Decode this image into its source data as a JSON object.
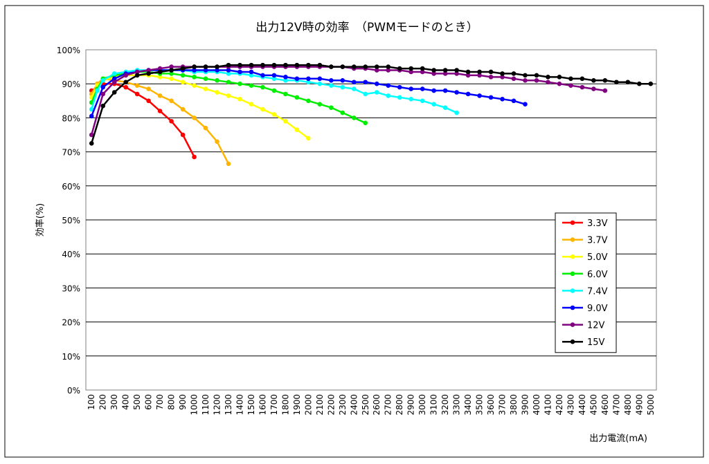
{
  "chart_data": {
    "type": "line",
    "title": "出力12V時の効率　（PWMモードのとき）",
    "xlabel": "出力電流(mA)",
    "ylabel": "効率(%)",
    "x": [
      100,
      200,
      300,
      400,
      500,
      600,
      700,
      800,
      900,
      1000,
      1100,
      1200,
      1300,
      1400,
      1500,
      1600,
      1700,
      1800,
      1900,
      2000,
      2100,
      2200,
      2300,
      2400,
      2500,
      2600,
      2700,
      2800,
      2900,
      3000,
      3100,
      3200,
      3300,
      3400,
      3500,
      3600,
      3700,
      3800,
      3900,
      4000,
      4100,
      4200,
      4300,
      4400,
      4500,
      4600,
      4700,
      4800,
      4900,
      5000
    ],
    "y_ticks": [
      "0%",
      "10%",
      "20%",
      "30%",
      "40%",
      "50%",
      "60%",
      "70%",
      "80%",
      "90%",
      "100%"
    ],
    "ylim": [
      0,
      100
    ],
    "grid": "horizontal",
    "legend_position": "right",
    "series": [
      {
        "name": "3.3V",
        "color": "#ff0000",
        "points": [
          [
            100,
            88.0
          ],
          [
            150,
            89.0
          ],
          [
            200,
            90.0
          ],
          [
            300,
            90.0
          ],
          [
            400,
            89.0
          ],
          [
            500,
            87.0
          ],
          [
            600,
            85.0
          ],
          [
            700,
            82.0
          ],
          [
            800,
            79.0
          ],
          [
            900,
            75.0
          ],
          [
            1000,
            68.5
          ]
        ]
      },
      {
        "name": "3.7V",
        "color": "#ffb400",
        "points": [
          [
            100,
            87.0
          ],
          [
            150,
            90.0
          ],
          [
            200,
            91.5
          ],
          [
            300,
            91.0
          ],
          [
            400,
            90.5
          ],
          [
            500,
            89.5
          ],
          [
            600,
            88.5
          ],
          [
            700,
            86.5
          ],
          [
            800,
            85.0
          ],
          [
            900,
            82.5
          ],
          [
            1000,
            80.0
          ],
          [
            1100,
            77.0
          ],
          [
            1200,
            73.0
          ],
          [
            1300,
            66.5
          ]
        ]
      },
      {
        "name": "5.0V",
        "color": "#ffff00",
        "points": [
          [
            100,
            86.0
          ],
          [
            150,
            89.5
          ],
          [
            200,
            91.0
          ],
          [
            300,
            92.0
          ],
          [
            400,
            92.5
          ],
          [
            500,
            92.5
          ],
          [
            600,
            92.5
          ],
          [
            700,
            92.0
          ],
          [
            800,
            91.5
          ],
          [
            900,
            90.5
          ],
          [
            1000,
            89.5
          ],
          [
            1100,
            88.5
          ],
          [
            1200,
            87.5
          ],
          [
            1300,
            86.5
          ],
          [
            1400,
            85.5
          ],
          [
            1500,
            84.0
          ],
          [
            1600,
            82.5
          ],
          [
            1700,
            81.0
          ],
          [
            1800,
            79.0
          ],
          [
            1900,
            76.5
          ],
          [
            2000,
            74.0
          ]
        ]
      },
      {
        "name": "6.0V",
        "color": "#00ee00",
        "points": [
          [
            100,
            84.5
          ],
          [
            150,
            88.5
          ],
          [
            200,
            91.5
          ],
          [
            300,
            92.5
          ],
          [
            400,
            93.0
          ],
          [
            500,
            93.5
          ],
          [
            600,
            93.5
          ],
          [
            700,
            93.0
          ],
          [
            800,
            93.0
          ],
          [
            900,
            92.5
          ],
          [
            1000,
            92.0
          ],
          [
            1100,
            91.5
          ],
          [
            1200,
            91.0
          ],
          [
            1300,
            90.5
          ],
          [
            1400,
            90.0
          ],
          [
            1500,
            89.5
          ],
          [
            1600,
            89.0
          ],
          [
            1700,
            88.0
          ],
          [
            1800,
            87.0
          ],
          [
            1900,
            86.0
          ],
          [
            2000,
            85.0
          ],
          [
            2100,
            84.0
          ],
          [
            2200,
            83.0
          ],
          [
            2300,
            81.5
          ],
          [
            2400,
            80.0
          ],
          [
            2500,
            78.5
          ]
        ]
      },
      {
        "name": "7.4V",
        "color": "#00ffff",
        "points": [
          [
            100,
            82.5
          ],
          [
            150,
            88.0
          ],
          [
            200,
            91.0
          ],
          [
            300,
            93.0
          ],
          [
            400,
            93.5
          ],
          [
            500,
            94.0
          ],
          [
            600,
            94.0
          ],
          [
            700,
            94.0
          ],
          [
            800,
            94.0
          ],
          [
            900,
            94.0
          ],
          [
            1000,
            93.5
          ],
          [
            1100,
            93.5
          ],
          [
            1200,
            93.5
          ],
          [
            1300,
            93.0
          ],
          [
            1400,
            93.0
          ],
          [
            1500,
            92.5
          ],
          [
            1600,
            92.0
          ],
          [
            1700,
            91.5
          ],
          [
            1800,
            91.0
          ],
          [
            1900,
            91.0
          ],
          [
            2000,
            90.5
          ],
          [
            2100,
            90.0
          ],
          [
            2200,
            89.5
          ],
          [
            2300,
            89.0
          ],
          [
            2400,
            88.5
          ],
          [
            2500,
            87.0
          ],
          [
            2600,
            87.5
          ],
          [
            2700,
            86.5
          ],
          [
            2800,
            86.0
          ],
          [
            2900,
            85.5
          ],
          [
            3000,
            85.0
          ],
          [
            3100,
            84.0
          ],
          [
            3200,
            83.0
          ],
          [
            3300,
            81.5
          ]
        ]
      },
      {
        "name": "9.0V",
        "color": "#0000ff",
        "points": [
          [
            100,
            80.5
          ],
          [
            200,
            89.0
          ],
          [
            300,
            91.5
          ],
          [
            400,
            93.0
          ],
          [
            500,
            93.5
          ],
          [
            600,
            94.0
          ],
          [
            700,
            94.0
          ],
          [
            800,
            94.0
          ],
          [
            900,
            94.0
          ],
          [
            1000,
            94.0
          ],
          [
            1100,
            94.0
          ],
          [
            1200,
            94.0
          ],
          [
            1300,
            94.0
          ],
          [
            1400,
            93.5
          ],
          [
            1500,
            93.5
          ],
          [
            1600,
            92.5
          ],
          [
            1700,
            92.5
          ],
          [
            1800,
            92.0
          ],
          [
            1900,
            91.5
          ],
          [
            2000,
            91.5
          ],
          [
            2100,
            91.5
          ],
          [
            2200,
            91.0
          ],
          [
            2300,
            91.0
          ],
          [
            2400,
            90.5
          ],
          [
            2500,
            90.5
          ],
          [
            2600,
            90.0
          ],
          [
            2700,
            89.5
          ],
          [
            2800,
            89.0
          ],
          [
            2900,
            88.5
          ],
          [
            3000,
            88.5
          ],
          [
            3100,
            88.0
          ],
          [
            3200,
            88.0
          ],
          [
            3300,
            87.5
          ],
          [
            3400,
            87.0
          ],
          [
            3500,
            86.5
          ],
          [
            3600,
            86.0
          ],
          [
            3700,
            85.5
          ],
          [
            3800,
            85.0
          ],
          [
            3900,
            84.0
          ]
        ]
      },
      {
        "name": "12V",
        "color": "#800080",
        "points": [
          [
            100,
            75.0
          ],
          [
            200,
            87.0
          ],
          [
            300,
            90.5
          ],
          [
            400,
            92.5
          ],
          [
            500,
            93.5
          ],
          [
            600,
            94.0
          ],
          [
            700,
            94.5
          ],
          [
            800,
            95.0
          ],
          [
            900,
            95.0
          ],
          [
            1000,
            95.0
          ],
          [
            1100,
            95.0
          ],
          [
            1200,
            95.0
          ],
          [
            1300,
            95.0
          ],
          [
            1400,
            95.0
          ],
          [
            1500,
            95.0
          ],
          [
            1600,
            95.0
          ],
          [
            1700,
            95.0
          ],
          [
            1800,
            95.0
          ],
          [
            1900,
            95.0
          ],
          [
            2000,
            95.0
          ],
          [
            2100,
            95.0
          ],
          [
            2200,
            95.0
          ],
          [
            2300,
            95.0
          ],
          [
            2400,
            94.5
          ],
          [
            2500,
            94.5
          ],
          [
            2600,
            94.0
          ],
          [
            2700,
            94.0
          ],
          [
            2800,
            94.0
          ],
          [
            2900,
            93.5
          ],
          [
            3000,
            93.5
          ],
          [
            3100,
            93.0
          ],
          [
            3200,
            93.0
          ],
          [
            3300,
            93.0
          ],
          [
            3400,
            92.5
          ],
          [
            3500,
            92.5
          ],
          [
            3600,
            92.0
          ],
          [
            3700,
            92.0
          ],
          [
            3800,
            91.5
          ],
          [
            3900,
            91.0
          ],
          [
            4000,
            91.0
          ],
          [
            4100,
            90.5
          ],
          [
            4200,
            90.0
          ],
          [
            4300,
            89.5
          ],
          [
            4400,
            89.0
          ],
          [
            4500,
            88.5
          ],
          [
            4600,
            88.0
          ]
        ]
      },
      {
        "name": "15V",
        "color": "#000000",
        "points": [
          [
            100,
            72.5
          ],
          [
            200,
            83.5
          ],
          [
            300,
            87.5
          ],
          [
            400,
            90.5
          ],
          [
            500,
            92.5
          ],
          [
            600,
            93.0
          ],
          [
            700,
            93.5
          ],
          [
            800,
            94.0
          ],
          [
            900,
            94.5
          ],
          [
            1000,
            95.0
          ],
          [
            1100,
            95.0
          ],
          [
            1200,
            95.0
          ],
          [
            1300,
            95.5
          ],
          [
            1400,
            95.5
          ],
          [
            1500,
            95.5
          ],
          [
            1600,
            95.5
          ],
          [
            1700,
            95.5
          ],
          [
            1800,
            95.5
          ],
          [
            1900,
            95.5
          ],
          [
            2000,
            95.5
          ],
          [
            2100,
            95.5
          ],
          [
            2200,
            95.0
          ],
          [
            2300,
            95.0
          ],
          [
            2400,
            95.0
          ],
          [
            2500,
            95.0
          ],
          [
            2600,
            95.0
          ],
          [
            2700,
            95.0
          ],
          [
            2800,
            94.5
          ],
          [
            2900,
            94.5
          ],
          [
            3000,
            94.5
          ],
          [
            3100,
            94.0
          ],
          [
            3200,
            94.0
          ],
          [
            3300,
            94.0
          ],
          [
            3400,
            93.5
          ],
          [
            3500,
            93.5
          ],
          [
            3600,
            93.5
          ],
          [
            3700,
            93.0
          ],
          [
            3800,
            93.0
          ],
          [
            3900,
            92.5
          ],
          [
            4000,
            92.5
          ],
          [
            4100,
            92.0
          ],
          [
            4200,
            92.0
          ],
          [
            4300,
            91.5
          ],
          [
            4400,
            91.5
          ],
          [
            4500,
            91.0
          ],
          [
            4600,
            91.0
          ],
          [
            4700,
            90.5
          ],
          [
            4800,
            90.5
          ],
          [
            4900,
            90.0
          ],
          [
            5000,
            90.0
          ]
        ]
      }
    ]
  }
}
